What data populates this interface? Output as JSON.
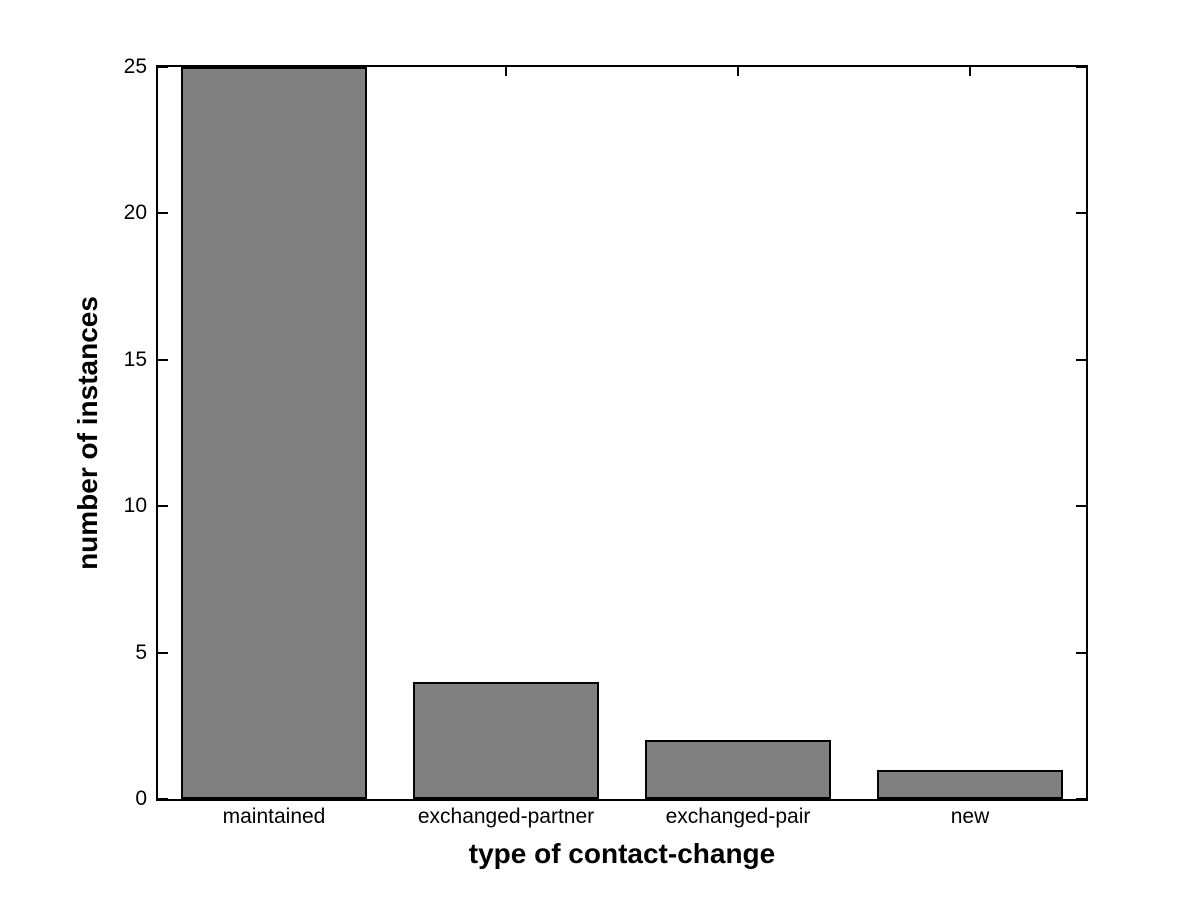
{
  "figure": {
    "background": "#ffffff",
    "axis_color": "#000000"
  },
  "chart_data": {
    "type": "bar",
    "categories": [
      "maintained",
      "exchanged-partner",
      "exchanged-pair",
      "new"
    ],
    "values": [
      25,
      4,
      2,
      1
    ],
    "title": "",
    "xlabel": "type of contact-change",
    "ylabel": "number of instances",
    "ylim": [
      0,
      25
    ],
    "yticks": [
      0,
      5,
      10,
      15,
      20,
      25
    ],
    "bar_width_fraction": 0.8,
    "bar_fill": "#808080",
    "bar_edge": "#000000",
    "grid": false,
    "legend": null,
    "box": true,
    "tick_direction": "in"
  }
}
